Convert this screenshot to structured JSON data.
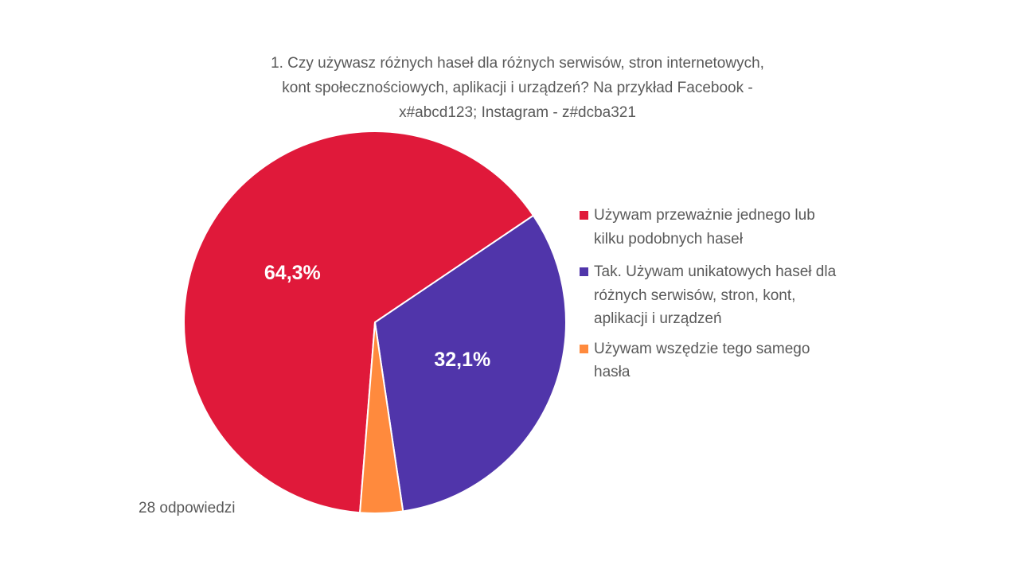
{
  "chart_data": {
    "type": "pie",
    "title_lines": [
      "1. Czy używasz różnych haseł dla różnych serwisów, stron internetowych,",
      "kont społecznościowych, aplikacji i urządzeń? Na przykład Facebook -",
      "x#abcd123; Instagram - z#dcba321"
    ],
    "slices": [
      {
        "label_lines": [
          "Używam przeważnie jednego lub",
          "kilku podobnych haseł"
        ],
        "value": 64.3,
        "data_label": "64,3%",
        "color": "#E0193A"
      },
      {
        "label_lines": [
          "Tak. Używam unikatowych haseł dla",
          "różnych serwisów, stron, kont,",
          "aplikacji i urządzeń"
        ],
        "value": 32.1,
        "data_label": "32,1%",
        "color": "#5035AA"
      },
      {
        "label_lines": [
          "Używam wszędzie tego samego",
          "hasła"
        ],
        "value": 3.6,
        "data_label": "",
        "color": "#FF8A3D"
      }
    ],
    "legend_position": "right",
    "footnote": "28 odpowiedzi"
  }
}
